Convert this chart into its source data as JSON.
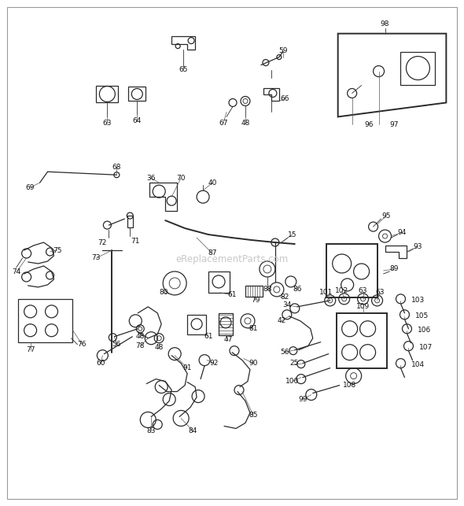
{
  "bg_color": "#ffffff",
  "line_color": "#2a2a2a",
  "label_color": "#111111",
  "watermark": "eReplacementParts.com",
  "watermark_color": "#c8c8c8",
  "fig_width": 5.9,
  "fig_height": 6.43,
  "dpi": 100
}
